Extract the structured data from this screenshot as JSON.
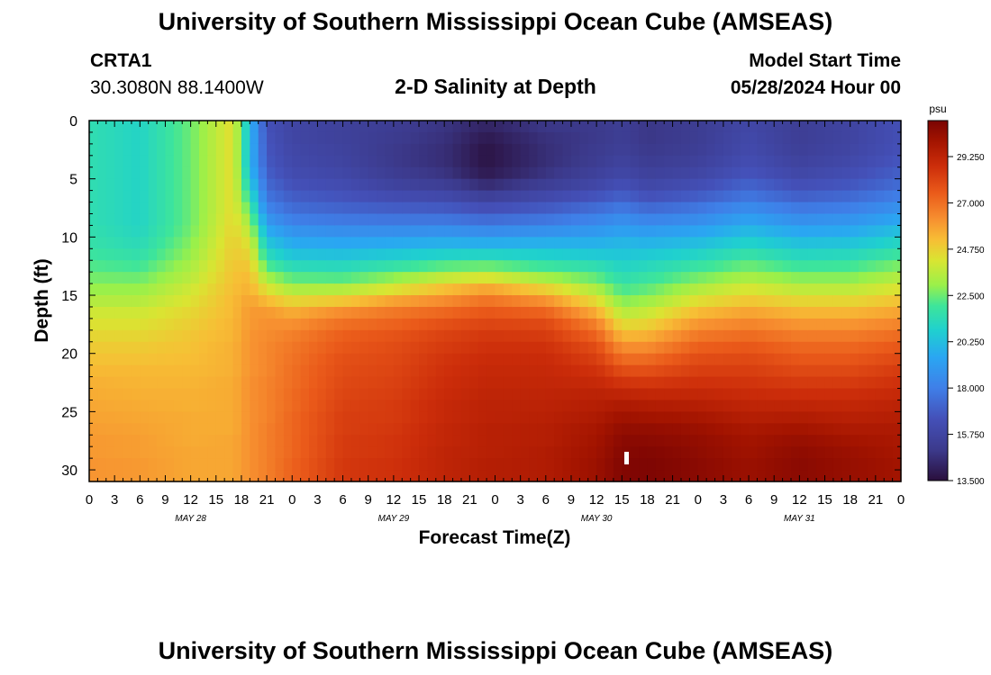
{
  "page_title": "University of Southern Mississippi Ocean Cube (AMSEAS)",
  "footer_title": "University of Southern Mississippi Ocean Cube (AMSEAS)",
  "station": {
    "id": "CRTA1",
    "coords": "30.3080N  88.1400W"
  },
  "model": {
    "label": "Model Start Time",
    "time": "05/28/2024 Hour 00"
  },
  "chart_data": {
    "type": "heatmap",
    "title": "2-D Salinity at Depth",
    "xlabel": "Forecast Time(Z)",
    "ylabel": "Depth (ft)",
    "xlim": [
      0,
      96
    ],
    "ylim": [
      0,
      31
    ],
    "x_tick_labels": [
      "0",
      "3",
      "6",
      "9",
      "12",
      "15",
      "18",
      "21",
      "0",
      "3",
      "6",
      "9",
      "12",
      "15",
      "18",
      "21",
      "0",
      "3",
      "6",
      "9",
      "12",
      "15",
      "18",
      "21",
      "0",
      "3",
      "6",
      "9",
      "12",
      "15",
      "18",
      "21",
      "0"
    ],
    "y_ticks": [
      0,
      5,
      10,
      15,
      20,
      25,
      30
    ],
    "y_tick_labels": [
      "0",
      "5",
      "10",
      "15",
      "20",
      "25",
      "30"
    ],
    "day_labels": [
      {
        "text": "MAY 28",
        "hour": 12
      },
      {
        "text": "MAY 29",
        "hour": 36
      },
      {
        "text": "MAY 30",
        "hour": 60
      },
      {
        "text": "MAY 31",
        "hour": 84
      }
    ],
    "colorbar": {
      "unit": "psu",
      "min": 13.5,
      "max": 31.0,
      "tick_labels": [
        "13.500",
        "15.750",
        "18.000",
        "20.250",
        "22.500",
        "24.750",
        "27.000",
        "29.250"
      ],
      "stops": [
        [
          13.5,
          "#2a0f3c"
        ],
        [
          15.0,
          "#3c3a8c"
        ],
        [
          16.5,
          "#4450b8"
        ],
        [
          18.0,
          "#3f7fe8"
        ],
        [
          19.5,
          "#2aa6f2"
        ],
        [
          20.8,
          "#1fd0cf"
        ],
        [
          22.0,
          "#3ee59a"
        ],
        [
          23.0,
          "#9af04a"
        ],
        [
          24.2,
          "#d9e532"
        ],
        [
          25.2,
          "#f7be35"
        ],
        [
          26.2,
          "#f79030"
        ],
        [
          27.5,
          "#ea5a1a"
        ],
        [
          28.8,
          "#cc2d0a"
        ],
        [
          30.0,
          "#a31400"
        ],
        [
          31.0,
          "#7a0403"
        ]
      ]
    },
    "depth_levels": [
      0,
      1,
      2,
      3,
      4,
      5,
      6,
      7,
      8,
      9,
      10,
      11,
      12,
      13,
      14,
      15,
      16,
      17,
      18,
      19,
      20,
      21,
      22,
      23,
      24,
      25,
      26,
      27,
      28,
      29,
      30,
      31
    ],
    "series": [
      {
        "hour": 0,
        "salinity": [
          21.5,
          21.5,
          21.5,
          21.5,
          21.5,
          21.5,
          21.5,
          21.5,
          21.5,
          21.6,
          21.7,
          21.9,
          22.2,
          22.6,
          23.0,
          23.5,
          24.0,
          24.3,
          24.6,
          24.9,
          25.1,
          25.3,
          25.5,
          25.6,
          25.7,
          25.8,
          25.9,
          26.0,
          26.0,
          26.1,
          26.1,
          26.1
        ]
      },
      {
        "hour": 6,
        "salinity": [
          21.0,
          21.0,
          21.0,
          21.0,
          21.0,
          21.0,
          21.0,
          21.0,
          21.0,
          21.1,
          21.3,
          21.6,
          22.0,
          22.5,
          23.0,
          23.5,
          24.0,
          24.3,
          24.6,
          24.9,
          25.1,
          25.3,
          25.4,
          25.5,
          25.6,
          25.7,
          25.8,
          25.9,
          25.9,
          26.0,
          26.0,
          26.0
        ]
      },
      {
        "hour": 12,
        "salinity": [
          22.5,
          22.5,
          22.5,
          22.5,
          22.5,
          22.5,
          22.5,
          22.5,
          22.5,
          22.6,
          22.8,
          23.0,
          23.3,
          23.6,
          24.0,
          24.3,
          24.6,
          24.8,
          25.0,
          25.1,
          25.2,
          25.3,
          25.4,
          25.5,
          25.5,
          25.6,
          25.6,
          25.6,
          25.7,
          25.7,
          25.7,
          25.7
        ]
      },
      {
        "hour": 17,
        "salinity": [
          24.5,
          24.5,
          24.5,
          24.5,
          24.5,
          24.5,
          24.5,
          24.5,
          24.6,
          24.7,
          24.8,
          24.9,
          25.0,
          25.1,
          25.2,
          25.3,
          25.3,
          25.4,
          25.4,
          25.5,
          25.5,
          25.5,
          25.6,
          25.6,
          25.6,
          25.6,
          25.6,
          25.7,
          25.7,
          25.7,
          25.7,
          25.7
        ]
      },
      {
        "hour": 19,
        "salinity": [
          20.0,
          20.0,
          20.0,
          20.0,
          20.3,
          20.8,
          21.5,
          22.2,
          23.0,
          23.6,
          24.2,
          24.6,
          25.0,
          25.3,
          25.5,
          25.8,
          26.0,
          26.0,
          26.1,
          26.1,
          26.1,
          26.1,
          26.2,
          26.2,
          26.2,
          26.2,
          26.2,
          26.2,
          26.2,
          26.2,
          26.2,
          26.2
        ]
      },
      {
        "hour": 21,
        "salinity": [
          16.5,
          16.6,
          16.7,
          16.8,
          17.0,
          17.3,
          17.7,
          18.2,
          18.9,
          19.7,
          20.5,
          21.3,
          22.2,
          23.2,
          24.3,
          25.3,
          26.0,
          26.2,
          26.3,
          26.4,
          26.4,
          26.4,
          26.5,
          26.5,
          26.5,
          26.5,
          26.6,
          26.6,
          26.6,
          26.6,
          26.6,
          26.6
        ]
      },
      {
        "hour": 24,
        "salinity": [
          15.8,
          15.8,
          15.9,
          16.0,
          16.2,
          16.5,
          16.9,
          17.4,
          18.0,
          18.8,
          19.6,
          20.4,
          21.3,
          22.3,
          23.4,
          24.6,
          25.6,
          26.2,
          26.6,
          26.8,
          26.9,
          27.0,
          27.0,
          27.1,
          27.1,
          27.2,
          27.2,
          27.2,
          27.2,
          27.3,
          27.3,
          27.3
        ]
      },
      {
        "hour": 30,
        "salinity": [
          15.5,
          15.5,
          15.6,
          15.7,
          15.9,
          16.2,
          16.6,
          17.1,
          17.8,
          18.6,
          19.5,
          20.3,
          21.2,
          22.2,
          23.5,
          25.0,
          26.3,
          27.0,
          27.4,
          27.6,
          27.8,
          27.9,
          28.0,
          28.1,
          28.2,
          28.3,
          28.3,
          28.4,
          28.4,
          28.5,
          28.5,
          28.5
        ]
      },
      {
        "hour": 36,
        "salinity": [
          15.2,
          15.1,
          15.0,
          15.0,
          15.2,
          15.6,
          16.2,
          16.9,
          17.7,
          18.6,
          19.6,
          20.6,
          21.7,
          22.9,
          24.3,
          25.8,
          26.8,
          27.3,
          27.7,
          27.9,
          28.0,
          28.1,
          28.2,
          28.3,
          28.4,
          28.4,
          28.5,
          28.6,
          28.6,
          28.7,
          28.7,
          28.7
        ]
      },
      {
        "hour": 42,
        "salinity": [
          14.8,
          14.7,
          14.6,
          14.6,
          14.8,
          15.3,
          16.0,
          16.8,
          17.7,
          18.7,
          19.8,
          20.9,
          22.3,
          23.8,
          25.2,
          26.3,
          27.2,
          27.8,
          28.2,
          28.4,
          28.6,
          28.7,
          28.8,
          28.9,
          29.0,
          29.0,
          29.1,
          29.1,
          29.2,
          29.2,
          29.2,
          29.2
        ]
      },
      {
        "hour": 47,
        "salinity": [
          14.2,
          13.9,
          13.7,
          13.7,
          13.9,
          14.5,
          15.4,
          16.4,
          17.4,
          18.5,
          19.7,
          21.0,
          22.5,
          24.2,
          25.8,
          26.9,
          27.6,
          28.1,
          28.5,
          28.7,
          28.9,
          29.0,
          29.1,
          29.2,
          29.3,
          29.3,
          29.4,
          29.4,
          29.4,
          29.5,
          29.5,
          29.5
        ]
      },
      {
        "hour": 54,
        "salinity": [
          14.9,
          14.7,
          14.6,
          14.6,
          14.8,
          15.3,
          16.0,
          16.8,
          17.7,
          18.7,
          19.8,
          20.8,
          21.9,
          23.2,
          24.8,
          26.2,
          27.3,
          28.0,
          28.4,
          28.7,
          28.9,
          29.0,
          29.1,
          29.2,
          29.3,
          29.4,
          29.5,
          29.5,
          29.6,
          29.6,
          29.6,
          29.6
        ]
      },
      {
        "hour": 60,
        "salinity": [
          15.0,
          15.0,
          15.1,
          15.2,
          15.5,
          15.9,
          16.6,
          17.4,
          18.2,
          19.0,
          19.8,
          20.6,
          21.5,
          22.4,
          23.4,
          24.5,
          25.6,
          26.6,
          27.3,
          27.9,
          28.3,
          28.7,
          29.0,
          29.3,
          29.5,
          29.7,
          29.9,
          30.0,
          30.1,
          30.2,
          30.2,
          30.2
        ]
      },
      {
        "hour": 63,
        "salinity": [
          15.3,
          15.3,
          15.4,
          15.6,
          15.9,
          16.4,
          17.0,
          17.8,
          18.6,
          19.3,
          20.0,
          20.5,
          21.0,
          21.5,
          22.1,
          22.8,
          23.6,
          24.5,
          25.4,
          26.3,
          27.1,
          27.9,
          28.6,
          29.2,
          29.7,
          30.1,
          30.4,
          30.6,
          30.7,
          30.8,
          30.8,
          30.8
        ]
      },
      {
        "hour": 66,
        "salinity": [
          14.9,
          14.9,
          15.0,
          15.2,
          15.5,
          15.9,
          16.5,
          17.3,
          18.2,
          19.1,
          19.9,
          20.6,
          21.2,
          21.8,
          22.4,
          23.1,
          23.9,
          24.7,
          25.5,
          26.3,
          27.1,
          27.8,
          28.5,
          29.1,
          29.6,
          30.0,
          30.4,
          30.6,
          30.8,
          30.9,
          30.9,
          30.9
        ]
      },
      {
        "hour": 72,
        "salinity": [
          15.2,
          15.2,
          15.3,
          15.5,
          15.8,
          16.3,
          16.9,
          17.7,
          18.5,
          19.4,
          20.2,
          21.0,
          21.8,
          22.6,
          23.5,
          24.4,
          25.3,
          26.1,
          26.8,
          27.4,
          27.9,
          28.3,
          28.7,
          29.1,
          29.5,
          29.9,
          30.2,
          30.4,
          30.5,
          30.6,
          30.6,
          30.6
        ]
      },
      {
        "hour": 78,
        "salinity": [
          15.9,
          16.0,
          16.1,
          16.3,
          16.6,
          17.1,
          17.7,
          18.5,
          19.3,
          20.1,
          20.9,
          21.7,
          22.5,
          23.3,
          24.2,
          25.0,
          25.8,
          26.5,
          27.1,
          27.6,
          28.0,
          28.3,
          28.6,
          28.9,
          29.2,
          29.5,
          29.8,
          30.0,
          30.1,
          30.2,
          30.2,
          30.2
        ]
      },
      {
        "hour": 84,
        "salinity": [
          15.3,
          15.3,
          15.4,
          15.6,
          15.9,
          16.4,
          17.0,
          17.8,
          18.6,
          19.5,
          20.3,
          21.1,
          21.9,
          22.8,
          23.7,
          24.6,
          25.4,
          26.1,
          26.7,
          27.2,
          27.6,
          28.0,
          28.4,
          28.8,
          29.2,
          29.6,
          30.0,
          30.3,
          30.5,
          30.6,
          30.6,
          30.6
        ]
      },
      {
        "hour": 90,
        "salinity": [
          15.7,
          15.7,
          15.8,
          16.0,
          16.3,
          16.7,
          17.3,
          18.0,
          18.8,
          19.6,
          20.4,
          21.2,
          22.0,
          22.8,
          23.7,
          24.6,
          25.4,
          26.1,
          26.7,
          27.2,
          27.6,
          28.0,
          28.4,
          28.8,
          29.1,
          29.4,
          29.7,
          30.0,
          30.2,
          30.3,
          30.3,
          30.3
        ]
      },
      {
        "hour": 96,
        "salinity": [
          16.4,
          16.4,
          16.5,
          16.7,
          17.0,
          17.4,
          18.0,
          18.7,
          19.5,
          20.3,
          21.1,
          21.9,
          22.7,
          23.5,
          24.3,
          25.1,
          25.8,
          26.5,
          27.1,
          27.6,
          28.0,
          28.4,
          28.7,
          29.0,
          29.3,
          29.5,
          29.7,
          29.8,
          29.9,
          30.0,
          30.0,
          30.0
        ]
      }
    ]
  }
}
